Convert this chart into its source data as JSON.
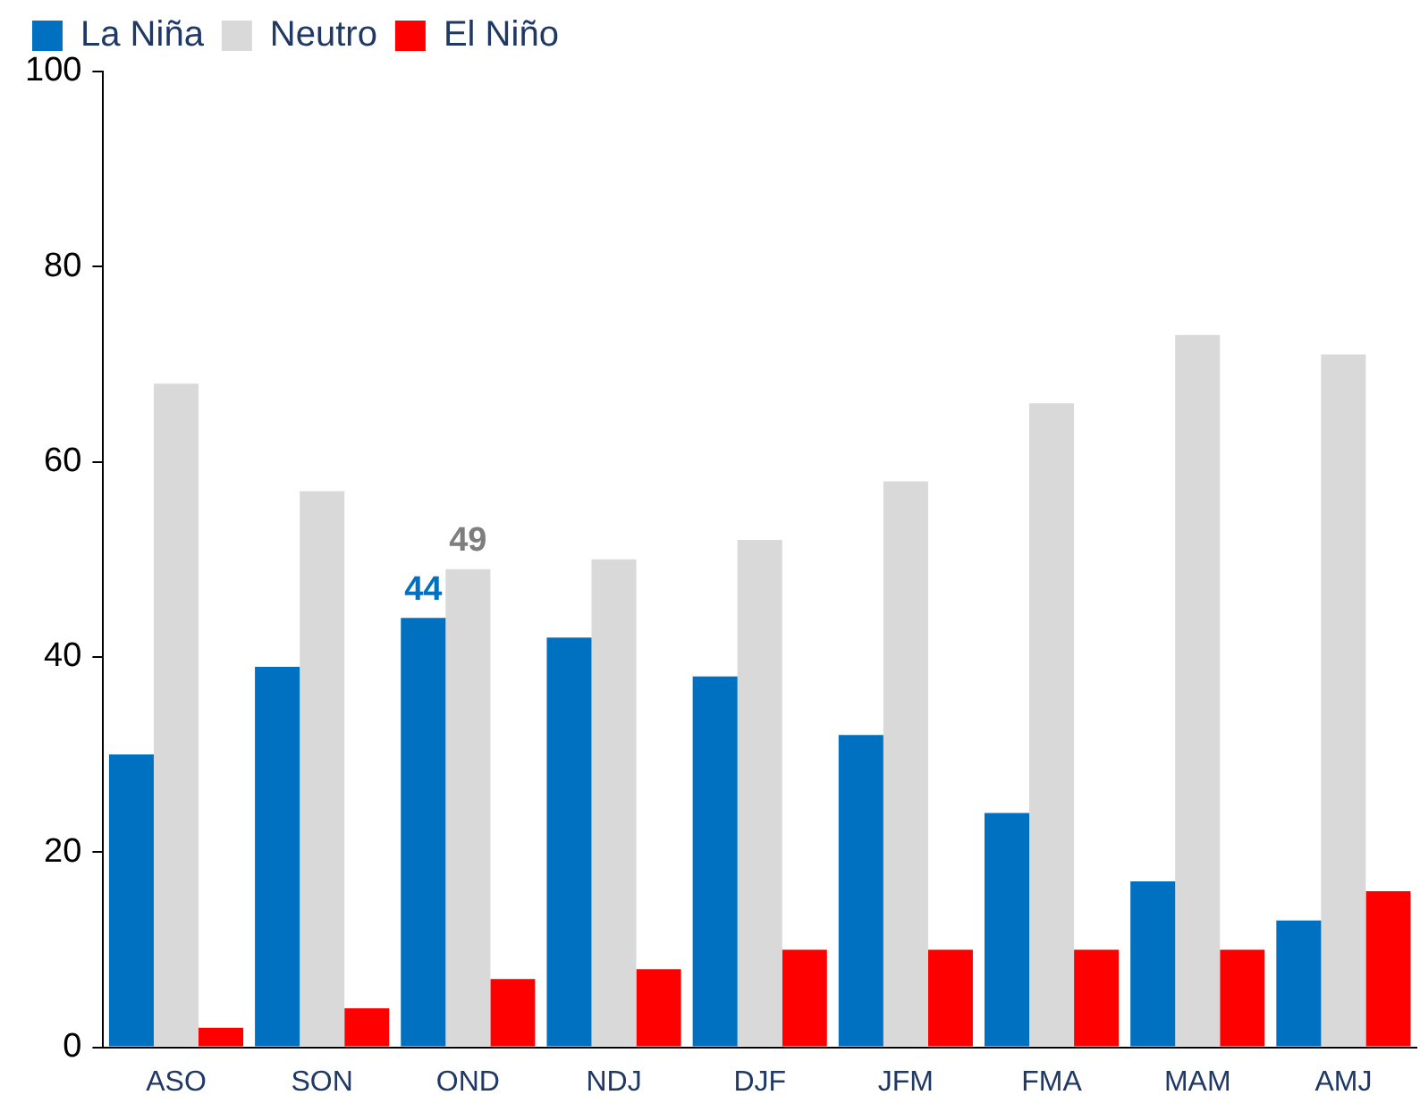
{
  "chart_data": {
    "type": "bar",
    "categories": [
      "ASO",
      "SON",
      "OND",
      "NDJ",
      "DJF",
      "JFM",
      "FMA",
      "MAM",
      "AMJ"
    ],
    "series": [
      {
        "name": "La Niña",
        "color": "#0070c0",
        "values": [
          30,
          39,
          44,
          42,
          38,
          32,
          24,
          17,
          13
        ],
        "value_labels": [
          null,
          null,
          "44",
          null,
          null,
          null,
          null,
          null,
          null
        ]
      },
      {
        "name": "Neutro",
        "color": "#d9d9d9",
        "values": [
          68,
          57,
          49,
          50,
          52,
          58,
          66,
          73,
          71
        ],
        "value_labels": [
          null,
          null,
          "49",
          null,
          null,
          null,
          null,
          null,
          null
        ]
      },
      {
        "name": "El Niño",
        "color": "#ff0000",
        "values": [
          2,
          4,
          7,
          8,
          10,
          10,
          10,
          10,
          16
        ]
      }
    ],
    "ylim": [
      0,
      100
    ],
    "yticks": [
      0,
      20,
      40,
      60,
      80,
      100
    ],
    "grid": false,
    "legend": "top left"
  }
}
